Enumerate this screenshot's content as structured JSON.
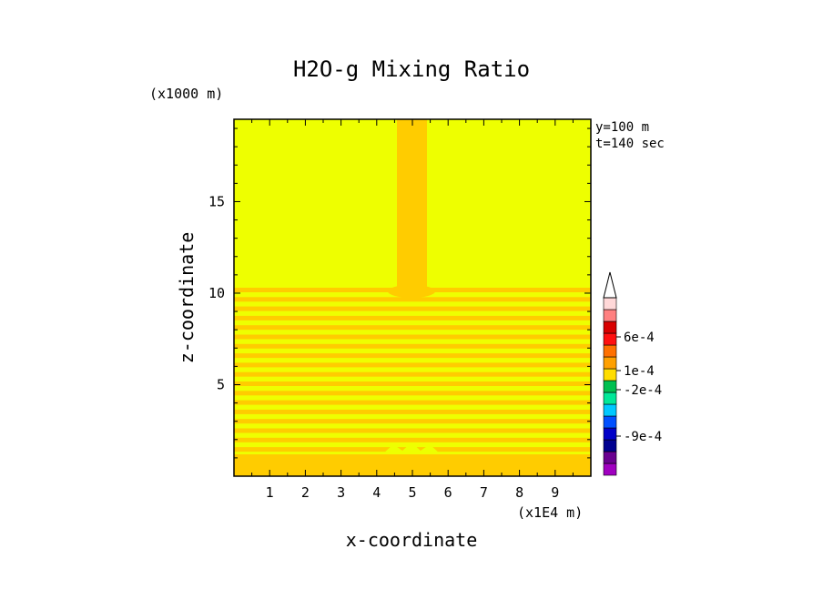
{
  "chart_data": {
    "type": "heatmap",
    "title": "H2O-g Mixing Ratio",
    "xlabel": "x-coordinate",
    "ylabel": "z-coordinate",
    "x_scale_label": "(x1E4 m)",
    "y_scale_label": "(x1000 m)",
    "annotation_y": "y=100 m",
    "annotation_t": "t=140 sec",
    "xlim": [
      0,
      10
    ],
    "ylim": [
      0,
      19.5
    ],
    "x_ticks": [
      "1",
      "2",
      "3",
      "4",
      "5",
      "6",
      "7",
      "8",
      "9"
    ],
    "y_ticks": [
      "5",
      "10",
      "15"
    ],
    "background_color": "#eeff00",
    "feature_color": "#ffcc00",
    "colorbar": {
      "colors": [
        "#a000c0",
        "#6a0090",
        "#000090",
        "#0000c8",
        "#0050ff",
        "#00c8ff",
        "#00e898",
        "#00c050",
        "#ffdd00",
        "#ffa000",
        "#ff7000",
        "#ff1010",
        "#d80000",
        "#ff8080",
        "#ffd8d8"
      ],
      "labels": [
        "6e-4",
        "1e-4",
        "-2e-4",
        "-9e-4"
      ]
    }
  }
}
